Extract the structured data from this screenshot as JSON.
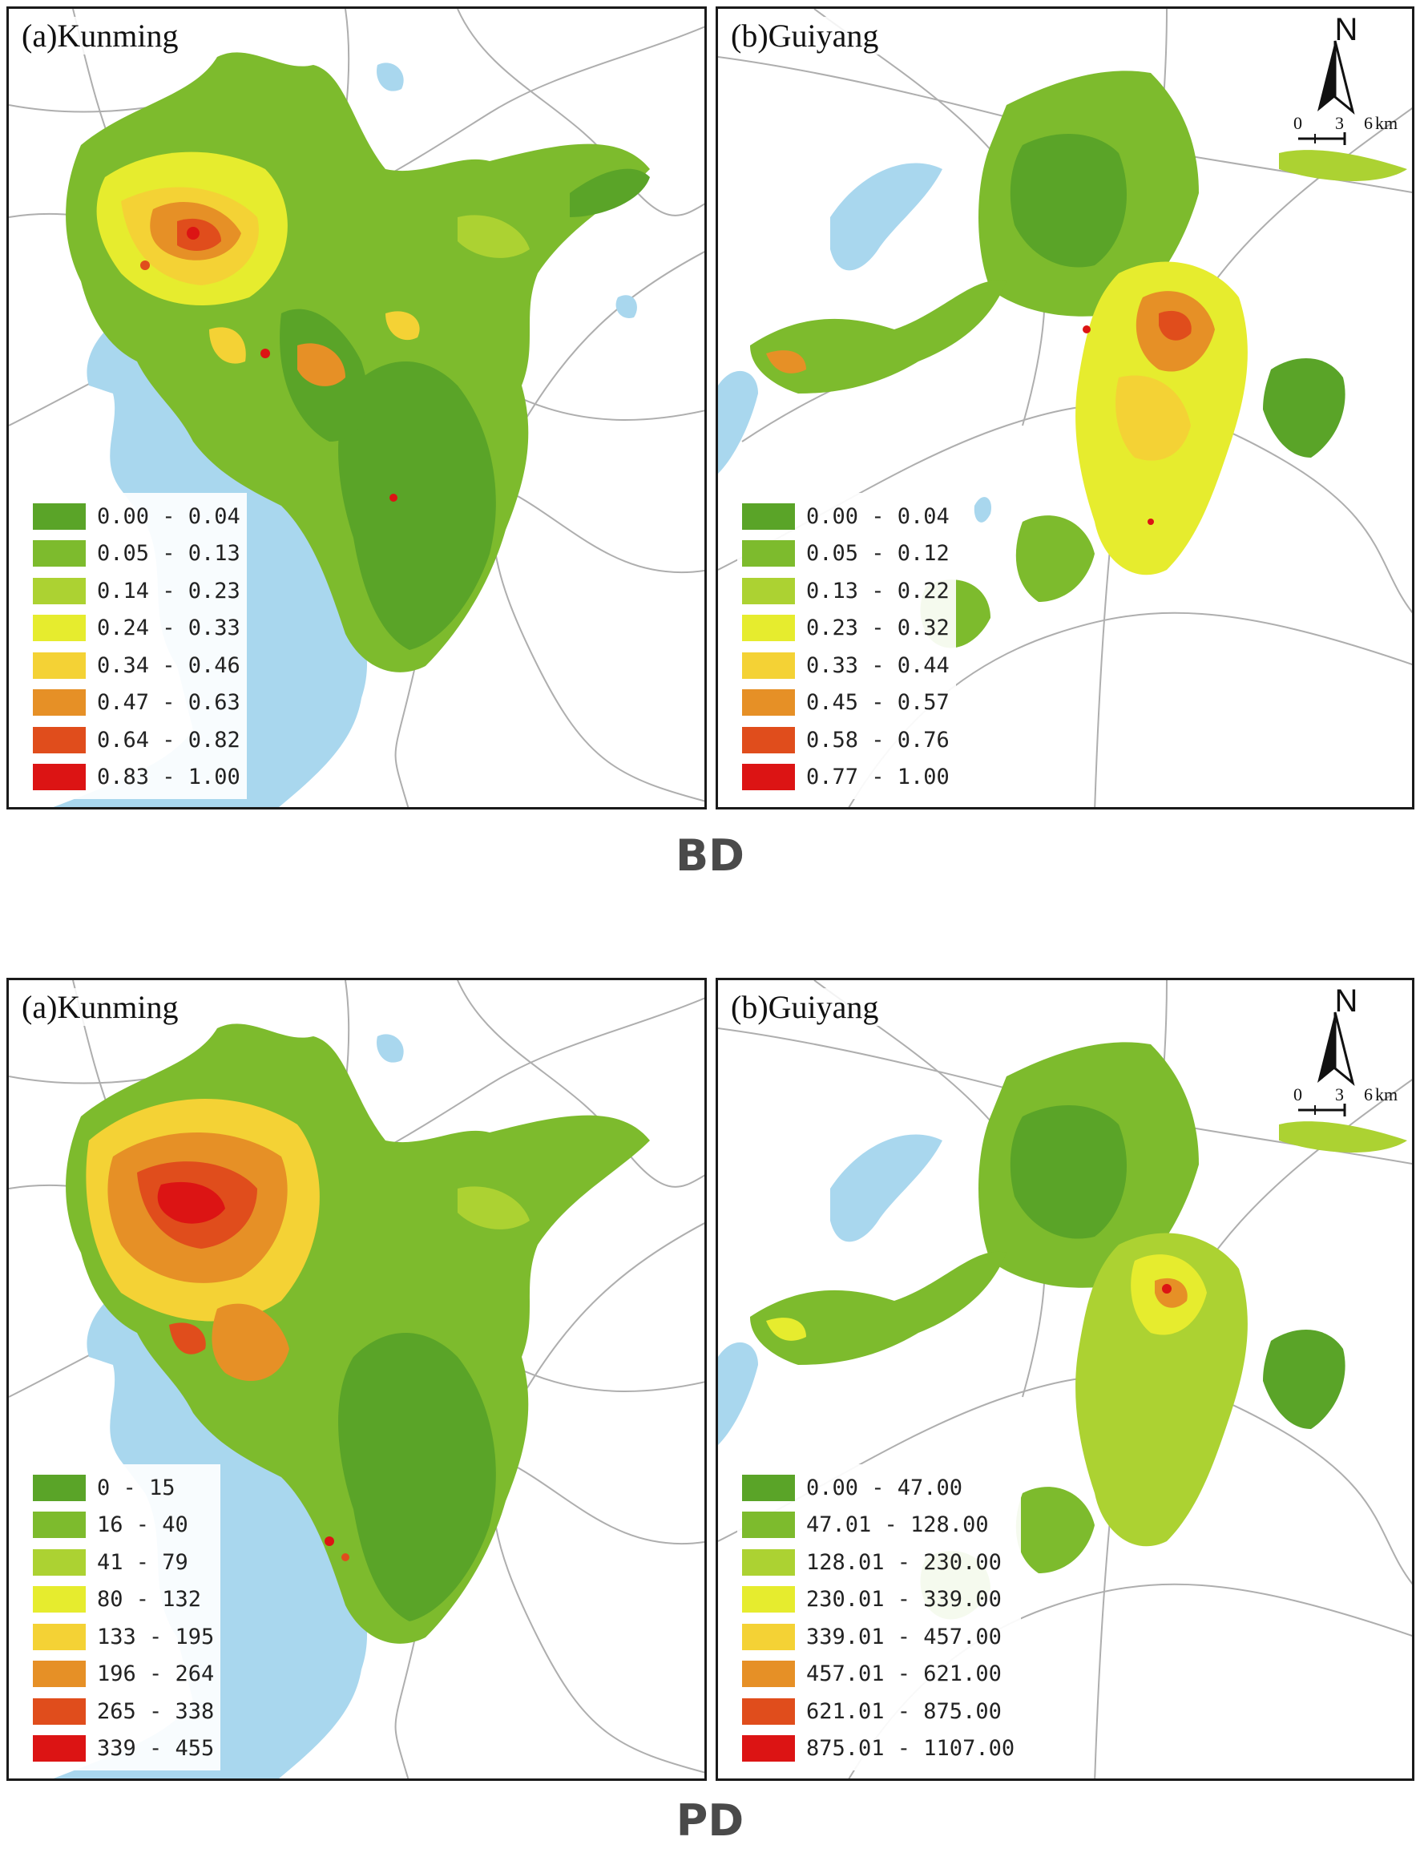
{
  "colors": {
    "c1": "#5aa428",
    "c2": "#7dbb2d",
    "c3": "#acd232",
    "c4": "#e6ec2e",
    "c5": "#f4d235",
    "c6": "#e69026",
    "c7": "#e04d1c",
    "c8": "#dc1414",
    "water": "#a9d7ee",
    "road": "#9a9a9a"
  },
  "sections": {
    "bd_label": "BD",
    "pd_label": "PD"
  },
  "panels": {
    "bd_kunming": {
      "title": "(a)Kunming",
      "legend": [
        "0.00 - 0.04",
        "0.05 - 0.13",
        "0.14 - 0.23",
        "0.24 - 0.33",
        "0.34 - 0.46",
        "0.47 - 0.63",
        "0.64 - 0.82",
        "0.83 - 1.00"
      ]
    },
    "bd_guiyang": {
      "title": "(b)Guiyang",
      "legend": [
        "0.00 - 0.04",
        "0.05 - 0.12",
        "0.13 - 0.22",
        "0.23 - 0.32",
        "0.33 - 0.44",
        "0.45 - 0.57",
        "0.58 - 0.76",
        "0.77 - 1.00"
      ]
    },
    "pd_kunming": {
      "title": "(a)Kunming",
      "legend": [
        "0 - 15",
        "16 - 40",
        "41 - 79",
        "80 - 132",
        "133 - 195",
        "196 - 264",
        "265 - 338",
        "339 - 455"
      ]
    },
    "pd_guiyang": {
      "title": "(b)Guiyang",
      "legend": [
        "0.00 - 47.00",
        "47.01 - 128.00",
        "128.01 - 230.00",
        "230.01 - 339.00",
        "339.01 - 457.00",
        "457.01 - 621.00",
        "621.01 - 875.00",
        "875.01 - 1107.00"
      ]
    }
  },
  "north_arrow": {
    "letter": "N"
  },
  "scale_bar": {
    "tick_0": "0",
    "tick_1": "3",
    "tick_2": "6",
    "unit": "km"
  }
}
